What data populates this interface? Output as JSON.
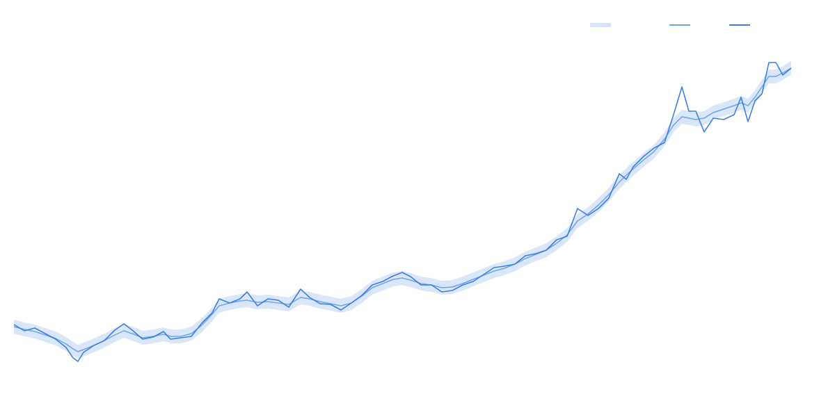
{
  "chart_data": {
    "type": "band-line",
    "x": [
      0,
      15,
      30,
      45,
      60,
      75,
      85,
      92,
      100,
      115,
      130,
      145,
      158,
      170,
      185,
      200,
      215,
      225,
      240,
      255,
      270,
      285,
      295,
      310,
      325,
      335,
      350,
      365,
      380,
      395,
      412,
      425,
      440,
      455,
      470,
      485,
      500,
      515,
      530,
      545,
      558,
      570,
      585,
      600,
      615,
      630,
      645,
      660,
      675,
      690,
      705,
      720,
      735,
      750,
      765,
      780,
      795,
      810,
      825,
      840,
      855,
      870,
      880,
      890,
      905,
      920,
      935,
      948,
      960,
      970,
      980,
      992,
      1005,
      1020,
      1035,
      1045,
      1055,
      1065,
      1075,
      1085,
      1095,
      1105,
      1117
    ],
    "xlim": [
      0,
      1117
    ],
    "ylim": [
      0,
      100
    ],
    "series": [
      {
        "color": "#d6e4fb",
        "lower": [
          16,
          15.2,
          14.6,
          13.6,
          12.6,
          11,
          9.6,
          8.8,
          9.4,
          10.6,
          12,
          13.6,
          14.8,
          14,
          12.8,
          13.2,
          13.8,
          13.2,
          13.2,
          14,
          16.4,
          19.6,
          22,
          22.8,
          23.4,
          23.6,
          23,
          23.2,
          22.8,
          22.4,
          24.4,
          24,
          23.2,
          22.6,
          22,
          22.8,
          24.8,
          27.2,
          28.4,
          29.6,
          30,
          29.4,
          28.4,
          28,
          27.2,
          27.4,
          28.4,
          29.6,
          30.8,
          32,
          32.8,
          34,
          35.6,
          36.8,
          38,
          40,
          42.4,
          46.4,
          48.4,
          51,
          54,
          57.6,
          59.6,
          61.4,
          64,
          66.4,
          70,
          74,
          76.4,
          76,
          75.6,
          76,
          77.6,
          78.6,
          79.6,
          80.4,
          79.6,
          82,
          85,
          88,
          88,
          89,
          90.4
        ],
        "upper": [
          20,
          19.2,
          18.6,
          17.6,
          16.6,
          15,
          13.6,
          12.8,
          13.4,
          14.6,
          16,
          17.6,
          18.8,
          18,
          16.8,
          17.2,
          17.8,
          17.2,
          17.2,
          18,
          20.4,
          23.6,
          26,
          26.8,
          27.4,
          27.6,
          27,
          27.2,
          26.8,
          26.4,
          28.4,
          28,
          27.2,
          26.6,
          26,
          26.8,
          28.8,
          31.2,
          32.4,
          33.6,
          34,
          33.4,
          32.4,
          32,
          31.2,
          31.4,
          32.4,
          33.6,
          34.8,
          36,
          36.8,
          38,
          39.6,
          40.8,
          42,
          44,
          46.4,
          50.4,
          52.4,
          55,
          58,
          61.6,
          63.6,
          65.4,
          68,
          70.4,
          74,
          78,
          80.4,
          80,
          79.6,
          80,
          81.6,
          82.6,
          83.6,
          84.4,
          83.6,
          86,
          89,
          92,
          92,
          93,
          94.4
        ]
      },
      {
        "color": "#6fa3ee",
        "values": [
          18,
          17.2,
          16.6,
          15.6,
          14.6,
          13,
          11.6,
          10.8,
          11.4,
          12.6,
          14,
          15.6,
          16.8,
          16,
          14.8,
          15.2,
          15.8,
          15.2,
          15.2,
          16,
          18.4,
          21.6,
          24,
          24.8,
          25.4,
          25.6,
          25,
          25.2,
          24.8,
          24.4,
          26.4,
          26,
          25.2,
          24.6,
          24,
          24.8,
          26.8,
          29.2,
          30.4,
          31.6,
          32,
          31.4,
          30.4,
          30,
          29.2,
          29.4,
          30.4,
          31.6,
          32.8,
          34,
          34.8,
          36,
          37.6,
          38.8,
          40,
          42,
          44.4,
          48.4,
          50.4,
          53,
          56,
          59.6,
          61.6,
          63.4,
          66,
          68.4,
          72,
          76,
          78.4,
          78,
          77.6,
          78,
          79.6,
          80.6,
          81.6,
          82.4,
          81.6,
          84,
          87,
          90,
          90,
          91,
          92.4
        ]
      },
      {
        "color": "#3c7fe0",
        "values": [
          18.6,
          16.8,
          17.6,
          16,
          14.4,
          12,
          9,
          8,
          10.6,
          12.6,
          14,
          17,
          18.8,
          17,
          14.4,
          15,
          16.6,
          14.4,
          14.8,
          15.2,
          19,
          22,
          26,
          24.8,
          26,
          28,
          24,
          26,
          25.6,
          23.6,
          28.8,
          26.4,
          24.6,
          24.4,
          22.8,
          24.8,
          27,
          30,
          31,
          32.6,
          33.6,
          32.4,
          30,
          30,
          28,
          28.4,
          30,
          31,
          33,
          35,
          35.4,
          36,
          38.4,
          39,
          40,
          43,
          44,
          52,
          50,
          52,
          55,
          62,
          60.4,
          64,
          67,
          69.4,
          71,
          79,
          87,
          80,
          80,
          74,
          78,
          77.6,
          79,
          84,
          77,
          83,
          85,
          94,
          94,
          90.4,
          92.4
        ]
      }
    ]
  }
}
